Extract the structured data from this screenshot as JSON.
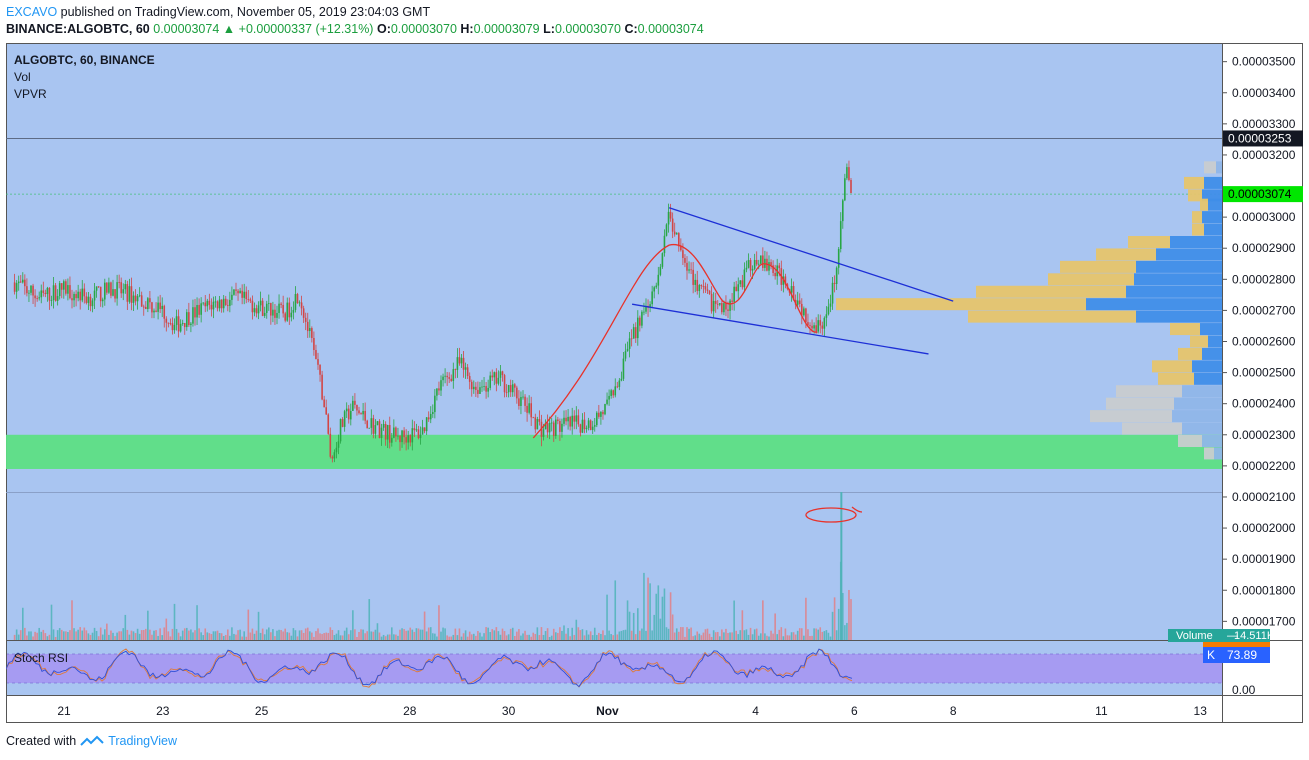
{
  "header": {
    "author": "EXCAVO",
    "published": "published on TradingView.com, November 05, 2019 23:04:03 GMT",
    "symbol": "BINANCE:ALGOBTC, 60",
    "last": "0.00003074",
    "arrow": "▲",
    "change": "+0.00000337 (+12.31%)",
    "o_label": "O:",
    "o": "0.00003070",
    "h_label": "H:",
    "h": "0.00003079",
    "l_label": "L:",
    "l": "0.00003070",
    "c_label": "C:",
    "c": "0.00003074"
  },
  "legend": {
    "title": "ALGOBTC, 60, BINANCE",
    "vol": "Vol",
    "vpvr": "VPVR",
    "stoch": "Stoch RSI"
  },
  "footer": {
    "created": "Created with",
    "brand": "TradingView"
  },
  "colors": {
    "background": "#a9c5f1",
    "up": "#27a644",
    "down": "#d24545",
    "zone": "#5ddf84",
    "trendline": "#1d2fd6",
    "cup": "#e8322a",
    "vpvr_blue": "#3f8ee8",
    "vpvr_gold": "#e6c56c",
    "price_tag": "#00e600",
    "stoch_band": "#a69bf2"
  },
  "chart_data": {
    "type": "candlestick",
    "symbol": "ALGOBTC",
    "interval": "60",
    "exchange": "BINANCE",
    "x_tick_labels": [
      "21",
      "23",
      "25",
      "28",
      "30",
      "Nov",
      "4",
      "6",
      "8",
      "11",
      "13"
    ],
    "y_tick_labels": [
      "0.00003500",
      "0.00003400",
      "0.00003300",
      "0.00003200",
      "0.00003000",
      "0.00002900",
      "0.00002800",
      "0.00002700",
      "0.00002600",
      "0.00002500",
      "0.00002400",
      "0.00002300",
      "0.00002200",
      "0.00002100",
      "0.00002000",
      "0.00001900",
      "0.00001800",
      "0.00001700"
    ],
    "ylim": [
      1.64e-05,
      3.56e-05
    ],
    "last_price": "0.00003074",
    "resistance_price": "0.00003253",
    "support_zone": [
      2.19e-05,
      2.3e-05
    ],
    "price_path": [
      [
        "Oct 20 00:00",
        2.79e-05
      ],
      [
        "Oct 20 12:00",
        2.74e-05
      ],
      [
        "Oct 21 00:00",
        2.77e-05
      ],
      [
        "Oct 21 12:00",
        2.74e-05
      ],
      [
        "Oct 22 00:00",
        2.77e-05
      ],
      [
        "Oct 22 12:00",
        2.74e-05
      ],
      [
        "Oct 23 00:00",
        2.7e-05
      ],
      [
        "Oct 23 06:00",
        2.65e-05
      ],
      [
        "Oct 23 12:00",
        2.68e-05
      ],
      [
        "Oct 24 00:00",
        2.72e-05
      ],
      [
        "Oct 24 12:00",
        2.74e-05
      ],
      [
        "Oct 25 00:00",
        2.71e-05
      ],
      [
        "Oct 25 12:00",
        2.69e-05
      ],
      [
        "Oct 25 18:00",
        2.76e-05
      ],
      [
        "Oct 26 00:00",
        2.6e-05
      ],
      [
        "Oct 26 06:00",
        2.42e-05
      ],
      [
        "Oct 26 10:00",
        2.21e-05
      ],
      [
        "Oct 26 14:00",
        2.32e-05
      ],
      [
        "Oct 26 20:00",
        2.39e-05
      ],
      [
        "Oct 27 06:00",
        2.33e-05
      ],
      [
        "Oct 27 18:00",
        2.29e-05
      ],
      [
        "Oct 28 06:00",
        2.31e-05
      ],
      [
        "Oct 28 14:00",
        2.45e-05
      ],
      [
        "Oct 29 00:00",
        2.53e-05
      ],
      [
        "Oct 29 08:00",
        2.45e-05
      ],
      [
        "Oct 29 20:00",
        2.48e-05
      ],
      [
        "Oct 30 06:00",
        2.41e-05
      ],
      [
        "Oct 30 16:00",
        2.32e-05
      ],
      [
        "Oct 31 04:00",
        2.33e-05
      ],
      [
        "Oct 31 16:00",
        2.34e-05
      ],
      [
        "Nov 01 00:00",
        2.39e-05
      ],
      [
        "Nov 01 08:00",
        2.53e-05
      ],
      [
        "Nov 01 16:00",
        2.68e-05
      ],
      [
        "Nov 02 00:00",
        2.78e-05
      ],
      [
        "Nov 02 06:00",
        3e-05
      ],
      [
        "Nov 02 14:00",
        2.84e-05
      ],
      [
        "Nov 03 00:00",
        2.74e-05
      ],
      [
        "Nov 03 08:00",
        2.7e-05
      ],
      [
        "Nov 03 16:00",
        2.78e-05
      ],
      [
        "Nov 04 00:00",
        2.88e-05
      ],
      [
        "Nov 04 08:00",
        2.83e-05
      ],
      [
        "Nov 04 16:00",
        2.79e-05
      ],
      [
        "Nov 05 00:00",
        2.69e-05
      ],
      [
        "Nov 05 06:00",
        2.65e-05
      ],
      [
        "Nov 05 12:00",
        2.7e-05
      ],
      [
        "Nov 05 16:00",
        2.88e-05
      ],
      [
        "Nov 05 20:00",
        3.15e-05
      ],
      [
        "Nov 05 23:00",
        3.074e-05
      ]
    ],
    "price_min_marker": "0.00002200",
    "indicators": {
      "volume": {
        "label": "Volume",
        "value": "14.511K"
      },
      "stoch_rsi": {
        "label": "Stoch RSI",
        "k_label": "K",
        "k": "73.89",
        "axis_label": "0.00"
      }
    },
    "annotations": [
      {
        "type": "falling_wedge_upper",
        "from": [
          "Nov 02 06:00",
          3.03e-05
        ],
        "to": [
          "Nov 08 00:00",
          2.73e-05
        ]
      },
      {
        "type": "falling_wedge_lower",
        "from": [
          "Nov 01 12:00",
          2.72e-05
        ],
        "to": [
          "Nov 07 12:00",
          2.56e-05
        ]
      },
      {
        "type": "cup_curve"
      },
      {
        "type": "volume_spike_circle"
      }
    ]
  }
}
